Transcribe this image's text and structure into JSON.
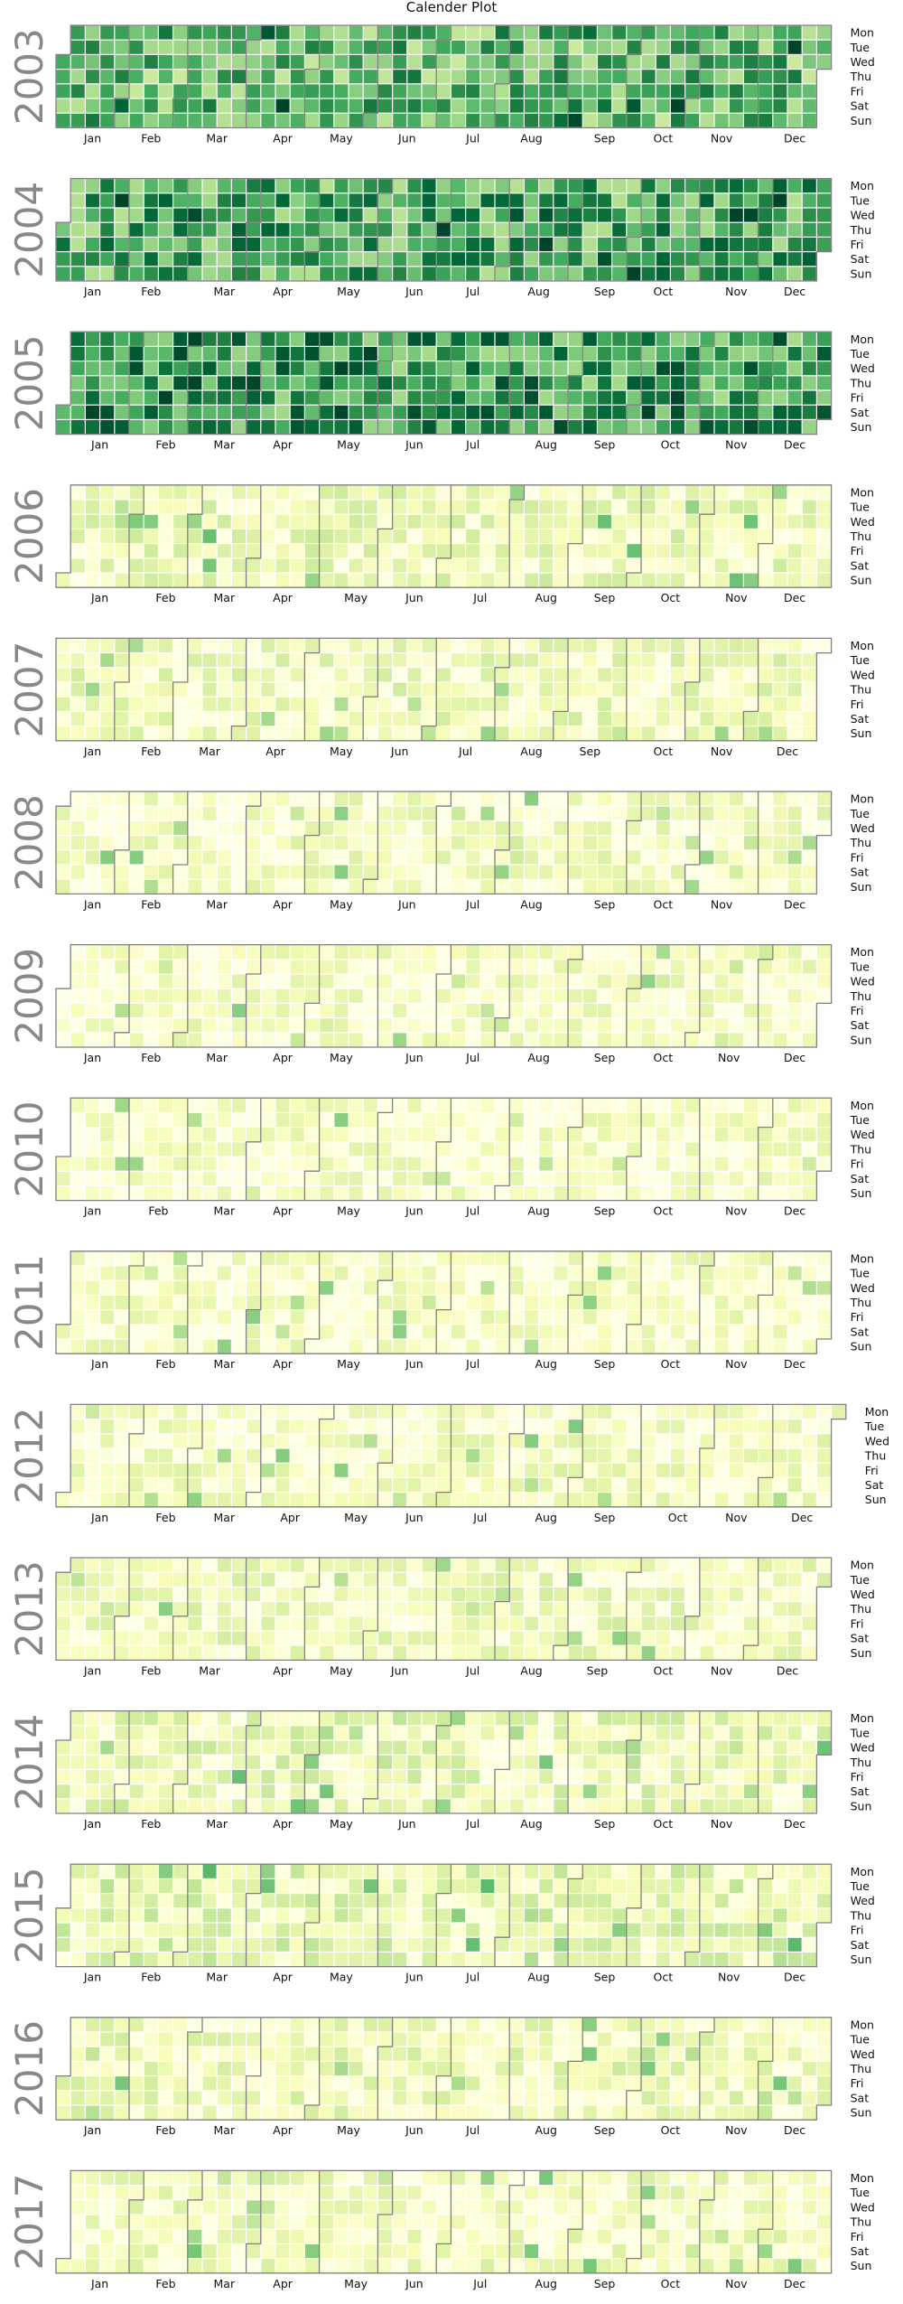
{
  "title": "Calender Plot",
  "chart_data": {
    "type": "heatmap",
    "title": "Calender Plot",
    "colormap": "YlGn",
    "colors": {
      "scale_low": "#ffffe5",
      "scale_mid": "#addd8e",
      "scale_high": "#004529",
      "month_border": "#808080",
      "cell_gap": "#ffffff",
      "year_label": "#888888"
    },
    "day_labels": [
      "Mon",
      "Tue",
      "Wed",
      "Thu",
      "Fri",
      "Sat",
      "Sun"
    ],
    "month_labels": [
      "Jan",
      "Feb",
      "Mar",
      "Apr",
      "May",
      "Jun",
      "Jul",
      "Aug",
      "Sep",
      "Oct",
      "Nov",
      "Dec"
    ],
    "years": [
      {
        "year": "2003",
        "level": 0.55
      },
      {
        "year": "2004",
        "level": 0.62
      },
      {
        "year": "2005",
        "level": 0.68
      },
      {
        "year": "2006",
        "level": 0.14
      },
      {
        "year": "2007",
        "level": 0.13
      },
      {
        "year": "2008",
        "level": 0.1
      },
      {
        "year": "2009",
        "level": 0.09
      },
      {
        "year": "2010",
        "level": 0.08
      },
      {
        "year": "2011",
        "level": 0.09
      },
      {
        "year": "2012",
        "level": 0.1
      },
      {
        "year": "2013",
        "level": 0.12
      },
      {
        "year": "2014",
        "level": 0.15
      },
      {
        "year": "2015",
        "level": 0.17
      },
      {
        "year": "2016",
        "level": 0.13
      },
      {
        "year": "2017",
        "level": 0.11
      }
    ]
  }
}
